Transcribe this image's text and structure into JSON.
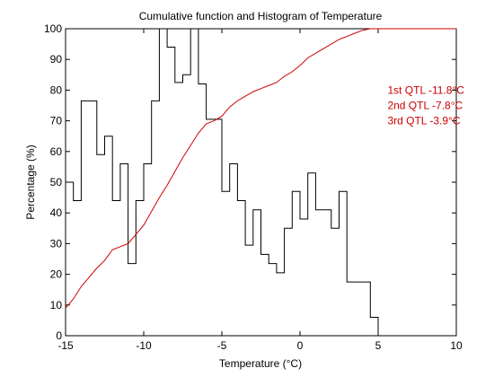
{
  "chart_data": {
    "type": "line",
    "title": "Cumulative function and Histogram of Temperature",
    "xlabel": "Temperature (°C)",
    "ylabel": "Percentage (%)",
    "xlim": [
      -15,
      10
    ],
    "ylim": [
      0,
      100
    ],
    "x_ticks": [
      -15,
      -10,
      -5,
      0,
      5,
      10
    ],
    "x_tick_labels": [
      "-15",
      "-10",
      "-5",
      "0",
      "5",
      "10"
    ],
    "y_ticks": [
      0,
      10,
      20,
      30,
      40,
      50,
      60,
      70,
      80,
      90,
      100
    ],
    "y_tick_labels": [
      "0",
      "10",
      "20",
      "30",
      "40",
      "50",
      "60",
      "70",
      "80",
      "90",
      "100"
    ],
    "grid": false,
    "series": [
      {
        "kind": "histogram-step",
        "color": "#000000",
        "bin_width": 0.5,
        "bins": [
          {
            "x0": -15.0,
            "y": 50
          },
          {
            "x0": -14.5,
            "y": 44
          },
          {
            "x0": -14.0,
            "y": 76.5
          },
          {
            "x0": -13.5,
            "y": 76.5
          },
          {
            "x0": -13.0,
            "y": 59
          },
          {
            "x0": -12.5,
            "y": 65
          },
          {
            "x0": -12.0,
            "y": 44
          },
          {
            "x0": -11.5,
            "y": 56
          },
          {
            "x0": -11.0,
            "y": 23.5
          },
          {
            "x0": -10.5,
            "y": 44
          },
          {
            "x0": -10.0,
            "y": 56
          },
          {
            "x0": -9.5,
            "y": 76.5
          },
          {
            "x0": -9.0,
            "y": 100
          },
          {
            "x0": -8.5,
            "y": 94
          },
          {
            "x0": -8.0,
            "y": 82.5
          },
          {
            "x0": -7.5,
            "y": 85
          },
          {
            "x0": -7.0,
            "y": 100
          },
          {
            "x0": -6.5,
            "y": 82
          },
          {
            "x0": -6.0,
            "y": 70.5
          },
          {
            "x0": -5.5,
            "y": 70.5
          },
          {
            "x0": -5.0,
            "y": 47
          },
          {
            "x0": -4.5,
            "y": 56
          },
          {
            "x0": -4.0,
            "y": 44
          },
          {
            "x0": -3.5,
            "y": 29.5
          },
          {
            "x0": -3.0,
            "y": 41
          },
          {
            "x0": -2.5,
            "y": 26.5
          },
          {
            "x0": -2.0,
            "y": 23.5
          },
          {
            "x0": -1.5,
            "y": 20.5
          },
          {
            "x0": -1.0,
            "y": 35
          },
          {
            "x0": -0.5,
            "y": 47
          },
          {
            "x0": 0.0,
            "y": 38
          },
          {
            "x0": 0.5,
            "y": 53
          },
          {
            "x0": 1.0,
            "y": 41
          },
          {
            "x0": 1.5,
            "y": 41
          },
          {
            "x0": 2.0,
            "y": 35
          },
          {
            "x0": 2.5,
            "y": 47
          },
          {
            "x0": 3.0,
            "y": 17.5
          },
          {
            "x0": 3.5,
            "y": 17.5
          },
          {
            "x0": 4.0,
            "y": 17.5
          },
          {
            "x0": 4.5,
            "y": 6
          },
          {
            "x0": 5.0,
            "y": 0
          }
        ]
      },
      {
        "kind": "cumulative-line",
        "color": "#cc0000",
        "points": [
          [
            -15.0,
            9
          ],
          [
            -14.5,
            12
          ],
          [
            -14.0,
            16
          ],
          [
            -13.5,
            19
          ],
          [
            -13.0,
            22
          ],
          [
            -12.5,
            24.5
          ],
          [
            -12.0,
            28
          ],
          [
            -11.5,
            29
          ],
          [
            -11.0,
            30
          ],
          [
            -10.5,
            33
          ],
          [
            -10.0,
            36
          ],
          [
            -9.5,
            40.5
          ],
          [
            -9.0,
            45
          ],
          [
            -8.5,
            49
          ],
          [
            -8.0,
            53.5
          ],
          [
            -7.5,
            58
          ],
          [
            -7.0,
            62
          ],
          [
            -6.5,
            66
          ],
          [
            -6.0,
            69
          ],
          [
            -5.5,
            70
          ],
          [
            -5.0,
            71.5
          ],
          [
            -4.5,
            74.5
          ],
          [
            -4.0,
            76.5
          ],
          [
            -3.5,
            78
          ],
          [
            -3.0,
            79.5
          ],
          [
            -2.5,
            80.5
          ],
          [
            -2.0,
            81.5
          ],
          [
            -1.5,
            82.5
          ],
          [
            -1.0,
            84.5
          ],
          [
            -0.5,
            86
          ],
          [
            0.0,
            88
          ],
          [
            0.5,
            90.5
          ],
          [
            1.0,
            92
          ],
          [
            1.5,
            93.5
          ],
          [
            2.0,
            95
          ],
          [
            2.5,
            96.5
          ],
          [
            3.0,
            97.5
          ],
          [
            3.5,
            98.5
          ],
          [
            4.0,
            99.5
          ],
          [
            4.5,
            100
          ],
          [
            5.0,
            100
          ],
          [
            10.0,
            100
          ]
        ]
      }
    ],
    "annotations": [
      {
        "text": "1st QTL -11.8°C",
        "x": 5.6,
        "y": 80
      },
      {
        "text": "2nd QTL -7.8°C",
        "x": 5.6,
        "y": 75
      },
      {
        "text": "3rd QTL -3.9°C",
        "x": 5.6,
        "y": 70
      }
    ]
  }
}
